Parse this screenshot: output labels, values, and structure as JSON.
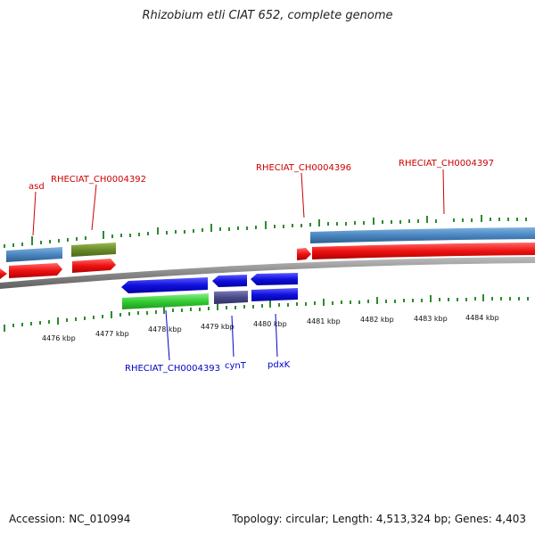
{
  "title": "Rhizobium etli CIAT 652, complete genome",
  "footer": {
    "accession_label": "Accession: ",
    "accession": "NC_010994",
    "topology_label": "Topology: ",
    "topology": "circular",
    "length_label": "Length: ",
    "length": "4,513,324 bp",
    "genes_label": "Genes: ",
    "genes": "4,403"
  },
  "colors": {
    "backbone": "#8a8a8a",
    "tick": "#2e8b2e",
    "forward_label": "#cc0000",
    "reverse_label": "#0000cc",
    "red": "#ee1111",
    "steelblue": "#4a86c0",
    "olive": "#6b8a2a",
    "blue": "#1010dd",
    "green": "#33cc33",
    "slate": "#4a4a8a"
  },
  "axis": {
    "unit": "kbp",
    "labels": [
      "4476 kbp",
      "4477 kbp",
      "4478 kbp",
      "4479 kbp",
      "4480 kbp",
      "4481 kbp",
      "4482 kbp",
      "4483 kbp",
      "4484 kbp"
    ]
  },
  "genes": {
    "forward": [
      "asd",
      "RHECIAT_CH0004392",
      "RHECIAT_CH0004396",
      "RHECIAT_CH0004397"
    ],
    "reverse": [
      "RHECIAT_CH0004393",
      "cynT",
      "pdxK"
    ]
  }
}
